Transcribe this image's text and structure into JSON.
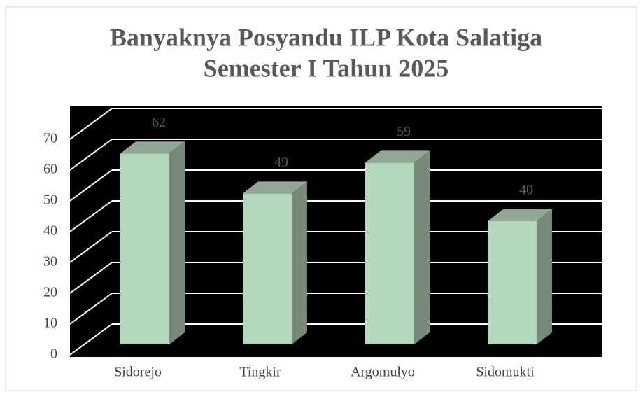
{
  "chart_data": {
    "type": "bar3d",
    "title": [
      "Banyaknya Posyandu ILP Kota Salatiga",
      "Semester I Tahun 2025"
    ],
    "categories": [
      "Sidorejo",
      "Tingkir",
      "Argomulyo",
      "Sidomukti"
    ],
    "values": [
      62,
      49,
      59,
      40
    ],
    "color": "#b3d7bc",
    "ylim": [
      0,
      70
    ],
    "yticks": [
      0,
      10,
      20,
      30,
      40,
      50,
      60,
      70
    ],
    "grid": true
  }
}
